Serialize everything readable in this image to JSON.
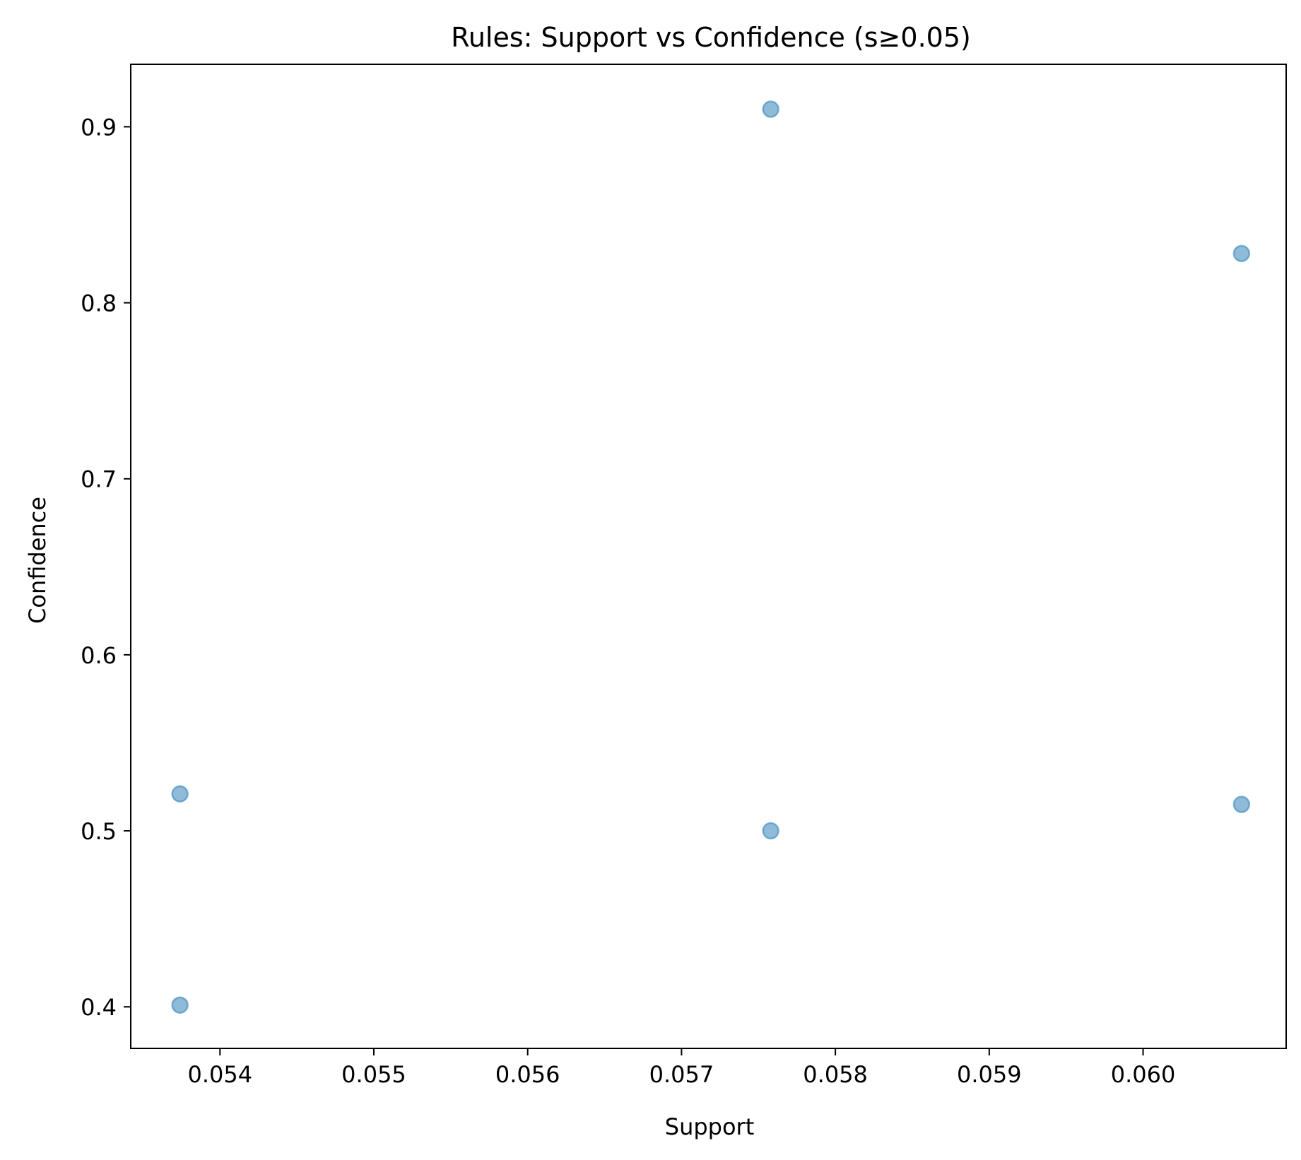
{
  "chart_data": {
    "type": "scatter",
    "title": "Rules: Support vs Confidence (s≥0.05)",
    "xlabel": "Support",
    "ylabel": "Confidence",
    "xlim": [
      0.05342,
      0.06093
    ],
    "ylim": [
      0.3764,
      0.9355
    ],
    "xticks": [
      0.054,
      0.055,
      0.056,
      0.057,
      0.058,
      0.059,
      0.06
    ],
    "xtick_labels": [
      "0.054",
      "0.055",
      "0.056",
      "0.057",
      "0.058",
      "0.059",
      "0.060"
    ],
    "yticks": [
      0.4,
      0.5,
      0.6,
      0.7,
      0.8,
      0.9
    ],
    "ytick_labels": [
      "0.4",
      "0.5",
      "0.6",
      "0.7",
      "0.8",
      "0.9"
    ],
    "grid": false,
    "marker_color": "#1f77b4",
    "marker_alpha": 0.5,
    "points": [
      {
        "x": 0.05374,
        "y": 0.521
      },
      {
        "x": 0.05374,
        "y": 0.401
      },
      {
        "x": 0.05758,
        "y": 0.91
      },
      {
        "x": 0.05758,
        "y": 0.5
      },
      {
        "x": 0.06064,
        "y": 0.828
      },
      {
        "x": 0.06064,
        "y": 0.515
      }
    ]
  }
}
